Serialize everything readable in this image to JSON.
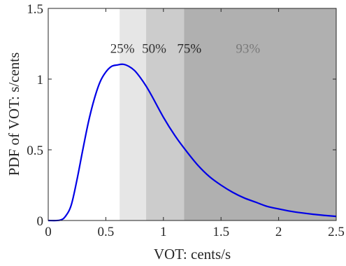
{
  "chart_data": {
    "type": "line",
    "title": "",
    "xlabel": "VOT: cents/s",
    "ylabel": "PDF of VOT: s/cents",
    "xlim": [
      0,
      2.5
    ],
    "ylim": [
      0,
      1.5
    ],
    "xticks": [
      0,
      0.5,
      1,
      1.5,
      2,
      2.5
    ],
    "xtick_labels": [
      "0",
      "0.5",
      "1",
      "1.5",
      "2",
      "2.5"
    ],
    "yticks": [
      0,
      0.5,
      1,
      1.5
    ],
    "ytick_labels": [
      "0",
      "0.5",
      "1",
      "1.5"
    ],
    "grid": false,
    "series": [
      {
        "color": "#0000e6",
        "x": [
          0,
          0.1,
          0.15,
          0.2,
          0.25,
          0.3,
          0.35,
          0.4,
          0.45,
          0.5,
          0.55,
          0.6,
          0.65,
          0.7,
          0.75,
          0.8,
          0.85,
          0.9,
          1.0,
          1.1,
          1.2,
          1.3,
          1.4,
          1.5,
          1.6,
          1.7,
          1.8,
          1.9,
          2.0,
          2.1,
          2.2,
          2.3,
          2.4,
          2.5
        ],
        "y": [
          0,
          0.002,
          0.03,
          0.11,
          0.29,
          0.5,
          0.7,
          0.86,
          0.98,
          1.05,
          1.09,
          1.1,
          1.105,
          1.09,
          1.06,
          1.01,
          0.95,
          0.88,
          0.73,
          0.6,
          0.49,
          0.39,
          0.31,
          0.25,
          0.2,
          0.16,
          0.13,
          0.1,
          0.082,
          0.066,
          0.054,
          0.044,
          0.036,
          0.029
        ]
      }
    ],
    "shaded_regions": [
      {
        "label": "25%",
        "x0": 0.62,
        "x1": 2.5,
        "color": "#e6e6e6",
        "label_x": 0.62,
        "label_color": "#333333"
      },
      {
        "label": "50%",
        "x0": 0.85,
        "x1": 2.5,
        "color": "#cccccc",
        "label_x": 0.895,
        "label_color": "#333333"
      },
      {
        "label": "75%",
        "x0": 1.18,
        "x1": 2.5,
        "color": "#b0b0b0",
        "label_x": 1.2,
        "label_color": "#262626"
      },
      {
        "label": "93%",
        "x0": 1.18,
        "x1": 2.5,
        "color": "#b0b0b0",
        "label_x": 1.71,
        "label_color": "#7a7a7a"
      }
    ],
    "band_label_y": 1.22
  }
}
